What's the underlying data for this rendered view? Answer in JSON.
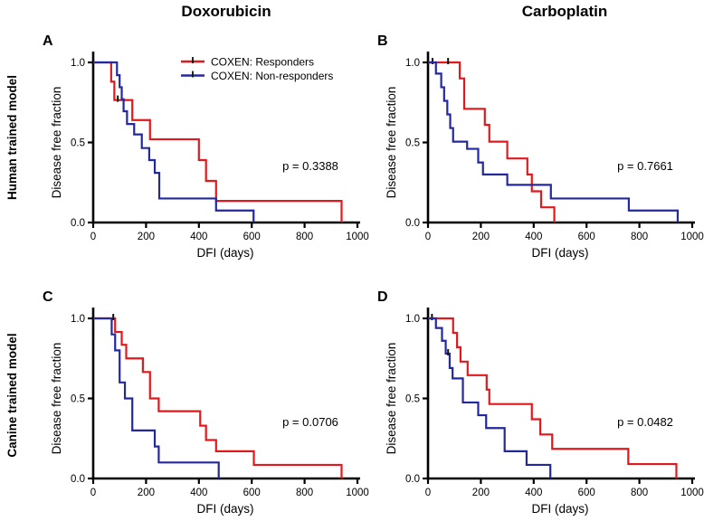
{
  "figure": {
    "background": "#ffffff",
    "columns": [
      {
        "label": "Doxorubicin"
      },
      {
        "label": "Carboplatin"
      }
    ],
    "rows": [
      {
        "label": "Human trained model"
      },
      {
        "label": "Canine trained model"
      }
    ]
  },
  "legend": {
    "position": "top-right-of-panel-A",
    "entries": [
      {
        "label": "COXEN: Responders",
        "color": "#e2191c"
      },
      {
        "label": "COXEN: Non-responders",
        "color": "#23289d"
      }
    ]
  },
  "axes": {
    "xlabel": "DFI (days)",
    "ylabel": "Disease free fraction",
    "xlim": [
      0,
      1000
    ],
    "ylim": [
      0.0,
      1.0
    ],
    "xticks": [
      "0",
      "200",
      "400",
      "600",
      "800",
      "1000"
    ],
    "yticks": [
      "0.0",
      "0.5",
      "1.0"
    ],
    "grid": false,
    "censor_mark_color": "#111111"
  },
  "chart_data": [
    {
      "type": "line",
      "style": "kaplan-meier-step",
      "letter": "A",
      "column": "Doxorubicin",
      "row": "Human trained model",
      "p_value": "p = 0.3388",
      "show_legend": true,
      "series": [
        {
          "name": "COXEN: Responders",
          "color": "#e2191c",
          "steps": [
            [
              0,
              1.0
            ],
            [
              68,
              0.88
            ],
            [
              80,
              0.765
            ],
            [
              148,
              0.64
            ],
            [
              215,
              0.52
            ],
            [
              400,
              0.39
            ],
            [
              427,
              0.26
            ],
            [
              465,
              0.135
            ],
            [
              940,
              0
            ]
          ],
          "censors": [
            [
              93,
              0.765
            ]
          ]
        },
        {
          "name": "COXEN: Non-responders",
          "color": "#23289d",
          "steps": [
            [
              0,
              1.0
            ],
            [
              90,
              0.92
            ],
            [
              100,
              0.845
            ],
            [
              108,
              0.77
            ],
            [
              115,
              0.695
            ],
            [
              128,
              0.615
            ],
            [
              155,
              0.55
            ],
            [
              184,
              0.465
            ],
            [
              212,
              0.39
            ],
            [
              233,
              0.31
            ],
            [
              250,
              0.15
            ],
            [
              465,
              0.075
            ],
            [
              607,
              0
            ]
          ],
          "censors": []
        }
      ]
    },
    {
      "type": "line",
      "style": "kaplan-meier-step",
      "letter": "B",
      "column": "Carboplatin",
      "row": "Human trained model",
      "p_value": "p = 0.7661",
      "show_legend": false,
      "series": [
        {
          "name": "COXEN: Responders",
          "color": "#e2191c",
          "steps": [
            [
              0,
              1.0
            ],
            [
              120,
              0.9
            ],
            [
              137,
              0.71
            ],
            [
              215,
              0.61
            ],
            [
              232,
              0.505
            ],
            [
              300,
              0.4
            ],
            [
              376,
              0.3
            ],
            [
              393,
              0.195
            ],
            [
              428,
              0.095
            ],
            [
              478,
              0
            ]
          ],
          "censors": [
            [
              17,
              1.0
            ],
            [
              76,
              1.0
            ]
          ]
        },
        {
          "name": "COXEN: Non-responders",
          "color": "#23289d",
          "steps": [
            [
              0,
              1.0
            ],
            [
              30,
              0.93
            ],
            [
              50,
              0.845
            ],
            [
              61,
              0.76
            ],
            [
              73,
              0.675
            ],
            [
              84,
              0.59
            ],
            [
              95,
              0.505
            ],
            [
              148,
              0.46
            ],
            [
              190,
              0.375
            ],
            [
              208,
              0.3
            ],
            [
              300,
              0.235
            ],
            [
              465,
              0.15
            ],
            [
              760,
              0.075
            ],
            [
              945,
              0
            ]
          ],
          "censors": []
        }
      ]
    },
    {
      "type": "line",
      "style": "kaplan-meier-step",
      "letter": "C",
      "column": "Doxorubicin",
      "row": "Canine trained model",
      "p_value": "p = 0.0706",
      "show_legend": false,
      "series": [
        {
          "name": "COXEN: Responders",
          "color": "#e2191c",
          "steps": [
            [
              0,
              1.0
            ],
            [
              83,
              0.915
            ],
            [
              108,
              0.835
            ],
            [
              125,
              0.75
            ],
            [
              188,
              0.665
            ],
            [
              215,
              0.5
            ],
            [
              248,
              0.42
            ],
            [
              405,
              0.33
            ],
            [
              427,
              0.24
            ],
            [
              465,
              0.17
            ],
            [
              608,
              0.085
            ],
            [
              940,
              0
            ]
          ],
          "censors": [
            [
              76,
              1.0
            ]
          ]
        },
        {
          "name": "COXEN: Non-responders",
          "color": "#23289d",
          "steps": [
            [
              0,
              1.0
            ],
            [
              70,
              0.9
            ],
            [
              83,
              0.8
            ],
            [
              100,
              0.6
            ],
            [
              120,
              0.5
            ],
            [
              148,
              0.3
            ],
            [
              233,
              0.2
            ],
            [
              248,
              0.1
            ],
            [
              475,
              0
            ]
          ],
          "censors": []
        }
      ]
    },
    {
      "type": "line",
      "style": "kaplan-meier-step",
      "letter": "D",
      "column": "Carboplatin",
      "row": "Canine trained model",
      "p_value": "p = 0.0482",
      "show_legend": false,
      "series": [
        {
          "name": "COXEN: Responders",
          "color": "#e2191c",
          "steps": [
            [
              0,
              1.0
            ],
            [
              95,
              0.91
            ],
            [
              110,
              0.82
            ],
            [
              123,
              0.73
            ],
            [
              150,
              0.645
            ],
            [
              222,
              0.555
            ],
            [
              232,
              0.465
            ],
            [
              393,
              0.37
            ],
            [
              425,
              0.275
            ],
            [
              470,
              0.185
            ],
            [
              758,
              0.09
            ],
            [
              940,
              0
            ]
          ],
          "censors": [
            [
              15,
              1.0
            ]
          ]
        },
        {
          "name": "COXEN: Non-responders",
          "color": "#23289d",
          "steps": [
            [
              0,
              1.0
            ],
            [
              30,
              0.94
            ],
            [
              53,
              0.86
            ],
            [
              67,
              0.78
            ],
            [
              82,
              0.69
            ],
            [
              93,
              0.625
            ],
            [
              132,
              0.475
            ],
            [
              190,
              0.395
            ],
            [
              220,
              0.315
            ],
            [
              290,
              0.17
            ],
            [
              373,
              0.085
            ],
            [
              463,
              0
            ]
          ],
          "censors": [
            [
              76,
              0.78
            ]
          ]
        }
      ]
    }
  ]
}
